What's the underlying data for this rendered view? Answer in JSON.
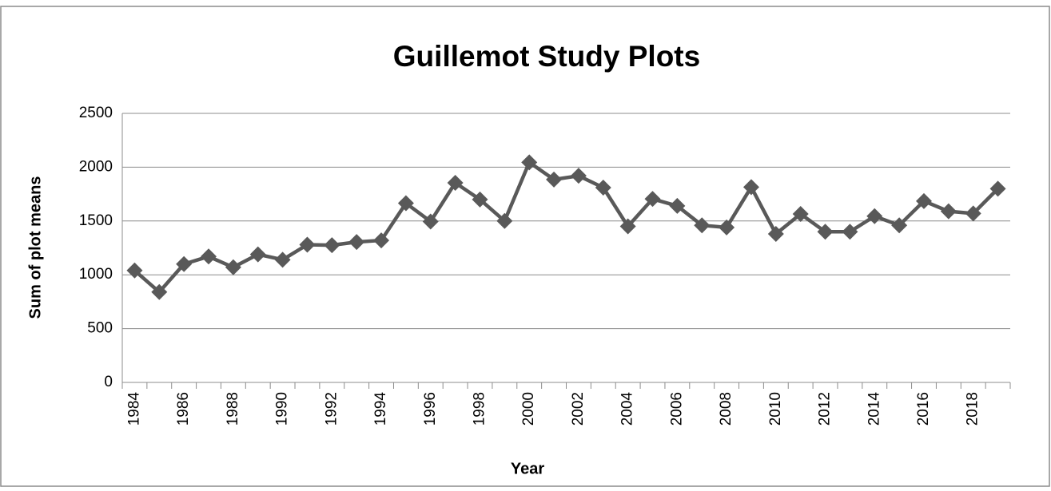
{
  "chart_data": {
    "type": "line",
    "title": "Guillemot Study Plots",
    "x_label": "Year",
    "y_label": "Sum of plot means",
    "categories": [
      "1984",
      null,
      "1986",
      null,
      "1988",
      null,
      "1990",
      null,
      "1992",
      null,
      "1994",
      null,
      "1996",
      null,
      "1998",
      null,
      "2000",
      null,
      "2002",
      null,
      "2004",
      null,
      "2006",
      null,
      "2008",
      null,
      "2010",
      null,
      "2012",
      null,
      "2014",
      null,
      "2016",
      null,
      "2018",
      null
    ],
    "values": [
      1040,
      840,
      1100,
      1170,
      1070,
      1190,
      1140,
      1280,
      1275,
      1305,
      1320,
      1665,
      1495,
      1855,
      1700,
      1500,
      2045,
      1885,
      1920,
      1810,
      1450,
      1705,
      1640,
      1460,
      1440,
      1815,
      1380,
      1565,
      1400,
      1400,
      1545,
      1460,
      1685,
      1590,
      1570,
      1800
    ],
    "color": "#595959",
    "marker": "diamond",
    "ylim": [
      0,
      2500
    ],
    "yticks": [
      0,
      500,
      1000,
      1500,
      2000,
      2500
    ],
    "grid": true
  }
}
